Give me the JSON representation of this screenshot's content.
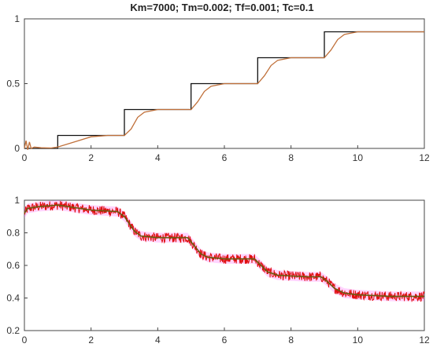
{
  "title": "Km=7000; Tm=0.002; Tf=0.001; Tc=0.1",
  "colors": {
    "reference": "#111111",
    "response": "#c0703a",
    "noisy": "#e01010",
    "filtered": "#6a5a10",
    "band": "#ff66ff"
  },
  "chart_data": [
    {
      "type": "line",
      "title": "Km=7000; Tm=0.002; Tf=0.001; Tc=0.1",
      "xlim": [
        0,
        12
      ],
      "ylim": [
        0,
        1
      ],
      "xticks": [
        0,
        2,
        4,
        6,
        8,
        10,
        12
      ],
      "yticks": [
        0,
        0.5,
        1
      ],
      "grid": false,
      "series": [
        {
          "role": "reference",
          "step": true,
          "x": [
            0,
            1,
            3,
            5,
            7,
            9,
            12
          ],
          "y": [
            0,
            0.1,
            0.3,
            0.5,
            0.7,
            0.9,
            0.9
          ]
        },
        {
          "role": "response",
          "x": [
            0,
            0.05,
            0.1,
            0.15,
            0.2,
            0.3,
            0.5,
            0.8,
            1.0,
            1.5,
            2.0,
            2.5,
            3.0,
            3.2,
            3.4,
            3.6,
            4.0,
            4.5,
            5.0,
            5.2,
            5.4,
            5.6,
            6.0,
            6.5,
            7.0,
            7.2,
            7.4,
            7.6,
            8.0,
            8.5,
            9.0,
            9.2,
            9.4,
            9.6,
            10.0,
            12.0
          ],
          "y": [
            0,
            0.06,
            -0.01,
            0.05,
            0.0,
            0.01,
            0.005,
            0.003,
            0.01,
            0.05,
            0.09,
            0.1,
            0.1,
            0.15,
            0.24,
            0.28,
            0.3,
            0.3,
            0.3,
            0.36,
            0.44,
            0.48,
            0.5,
            0.5,
            0.5,
            0.56,
            0.64,
            0.68,
            0.7,
            0.7,
            0.7,
            0.76,
            0.84,
            0.88,
            0.9,
            0.9
          ]
        }
      ]
    },
    {
      "type": "line",
      "xlim": [
        0,
        12
      ],
      "ylim": [
        0.2,
        1
      ],
      "xticks": [
        0,
        2,
        4,
        6,
        8,
        10,
        12
      ],
      "yticks": [
        0.2,
        0.4,
        0.6,
        0.8,
        1
      ],
      "grid": false,
      "series": [
        {
          "role": "filtered",
          "x": [
            0,
            0.1,
            0.4,
            1,
            2,
            2.8,
            3.0,
            3.3,
            3.5,
            4.0,
            4.5,
            4.9,
            5.1,
            5.3,
            5.5,
            6.0,
            6.5,
            6.9,
            7.1,
            7.3,
            7.6,
            8.0,
            8.5,
            8.9,
            9.1,
            9.3,
            9.6,
            10.0,
            11.0,
            12.0
          ],
          "y": [
            0.92,
            0.95,
            0.96,
            0.97,
            0.94,
            0.93,
            0.9,
            0.81,
            0.78,
            0.77,
            0.77,
            0.77,
            0.72,
            0.67,
            0.65,
            0.64,
            0.64,
            0.64,
            0.6,
            0.56,
            0.54,
            0.535,
            0.53,
            0.53,
            0.5,
            0.46,
            0.43,
            0.42,
            0.41,
            0.41
          ]
        },
        {
          "role": "noisy",
          "noise_amplitude": 0.03,
          "follows": "filtered"
        }
      ]
    }
  ]
}
